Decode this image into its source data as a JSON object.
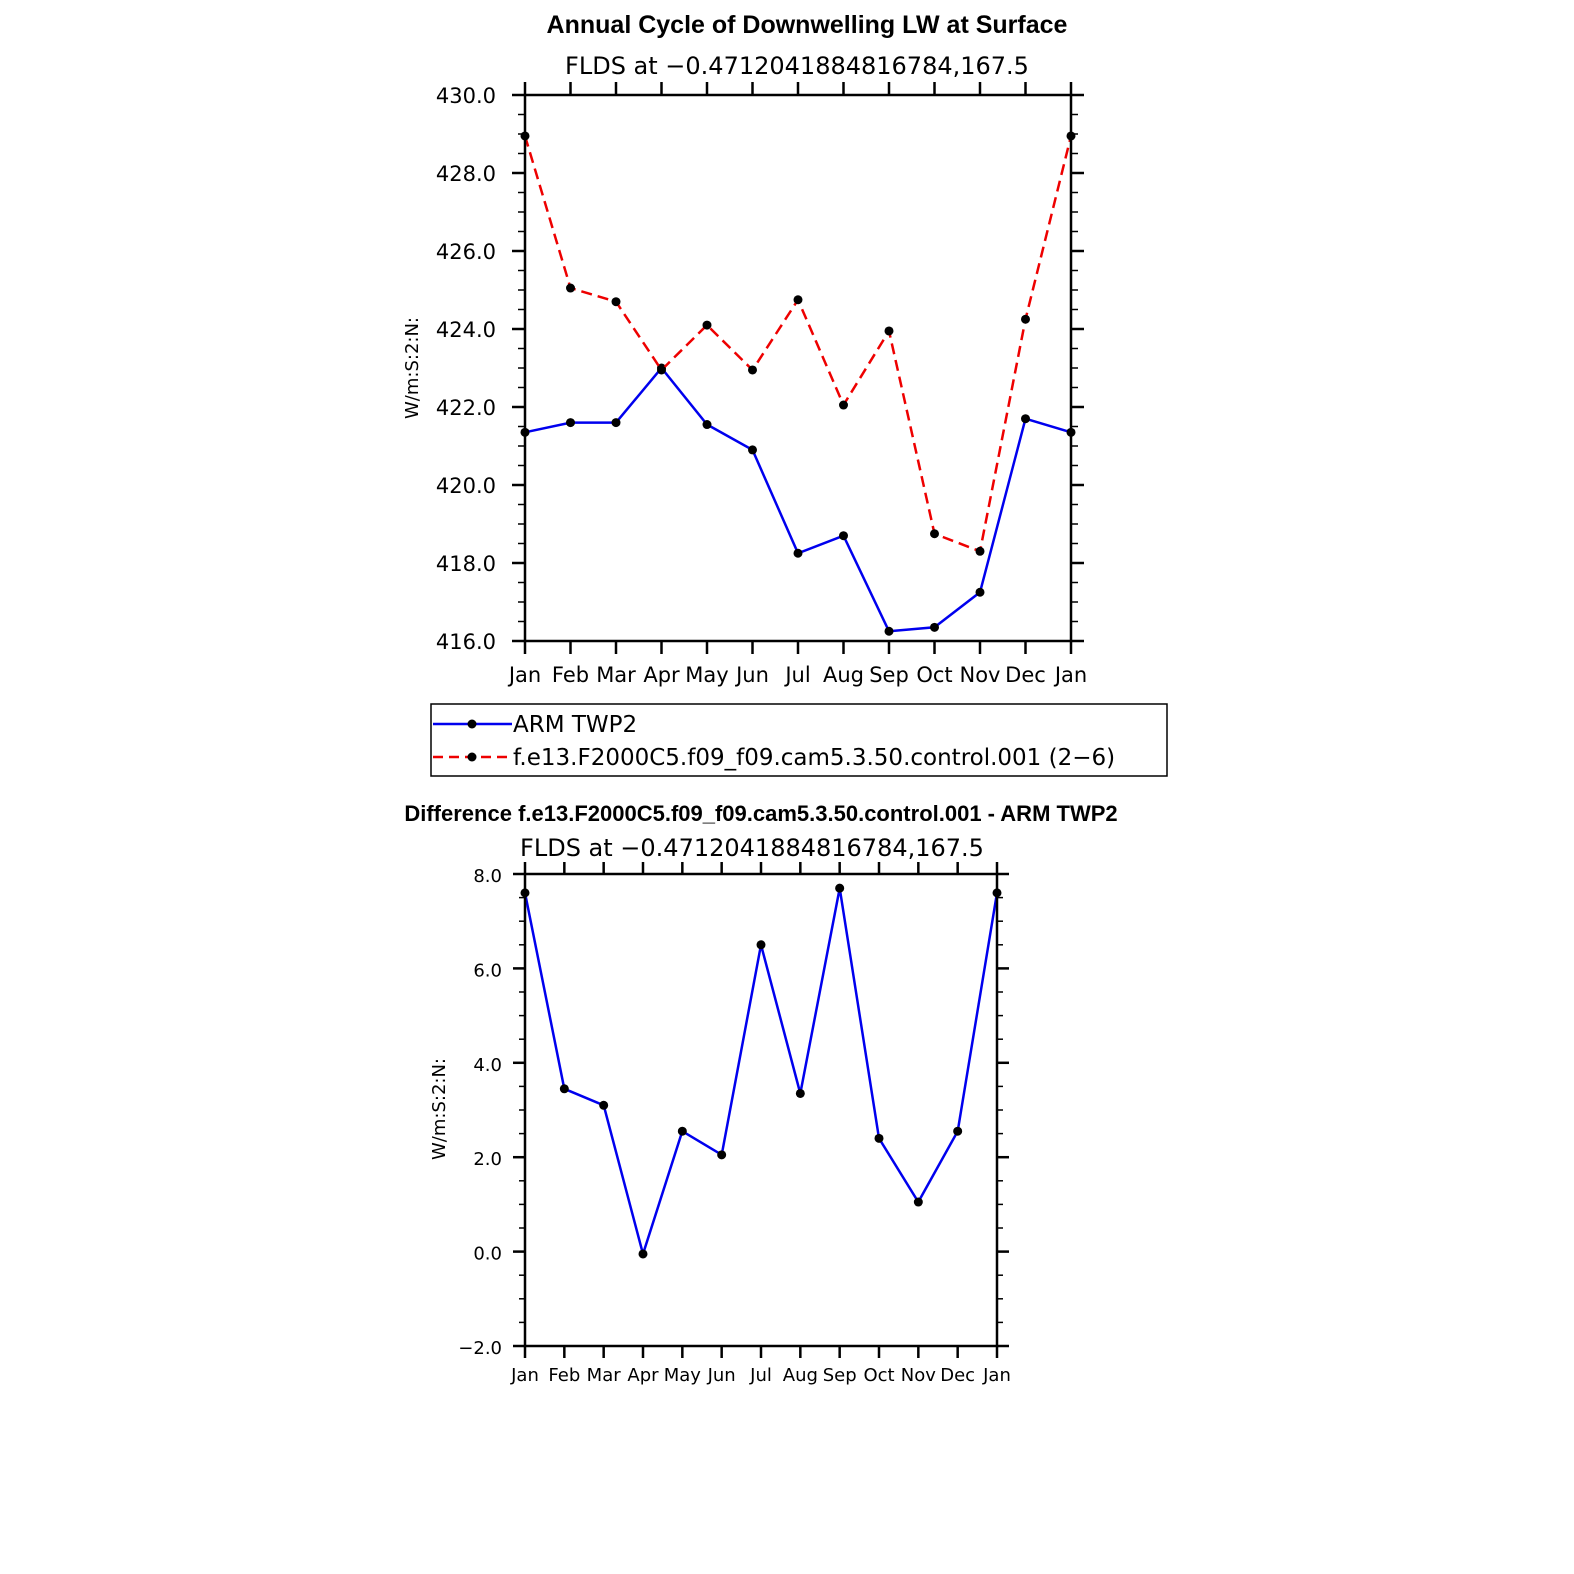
{
  "chart_data": [
    {
      "type": "line",
      "title": "Annual Cycle of Downwelling LW at Surface",
      "subtitle": "FLDS at −0.4712041884816784,167.5",
      "ylabel": "W/m:S:2:N:",
      "ylim": [
        416.0,
        430.0
      ],
      "yticks": [
        "416.0",
        "418.0",
        "420.0",
        "422.0",
        "424.0",
        "426.0",
        "428.0",
        "430.0"
      ],
      "categories": [
        "Jan",
        "Feb",
        "Mar",
        "Apr",
        "May",
        "Jun",
        "Jul",
        "Aug",
        "Sep",
        "Oct",
        "Nov",
        "Dec",
        "Jan"
      ],
      "series": [
        {
          "name": "ARM TWP2",
          "color": "#0000ee",
          "dash": "solid",
          "values": [
            421.35,
            421.6,
            421.6,
            423.0,
            421.55,
            420.9,
            418.25,
            418.7,
            416.25,
            416.35,
            417.25,
            421.7,
            421.35
          ]
        },
        {
          "name": "f.e13.F2000C5.f09_f09.cam5.3.50.control.001 (2−6)",
          "color": "#ee0000",
          "dash": "dashed",
          "values": [
            428.95,
            425.05,
            424.7,
            422.95,
            424.1,
            422.95,
            424.75,
            422.05,
            423.95,
            418.75,
            418.3,
            424.25,
            428.95
          ]
        }
      ]
    },
    {
      "type": "line",
      "title": "Difference f.e13.F2000C5.f09_f09.cam5.3.50.control.001 - ARM TWP2",
      "subtitle": "FLDS at −0.4712041884816784,167.5",
      "ylabel": "W/m:S:2:N:",
      "ylim": [
        -2.0,
        8.0
      ],
      "yticks": [
        "−2.0",
        "0.0",
        "2.0",
        "4.0",
        "6.0",
        "8.0"
      ],
      "categories": [
        "Jan",
        "Feb",
        "Mar",
        "Apr",
        "May",
        "Jun",
        "Jul",
        "Aug",
        "Sep",
        "Oct",
        "Nov",
        "Dec",
        "Jan"
      ],
      "series": [
        {
          "color": "#0000ee",
          "dash": "solid",
          "values": [
            7.6,
            3.45,
            3.1,
            -0.05,
            2.55,
            2.05,
            6.5,
            3.35,
            7.7,
            2.4,
            1.05,
            2.55,
            7.6
          ]
        }
      ]
    }
  ]
}
